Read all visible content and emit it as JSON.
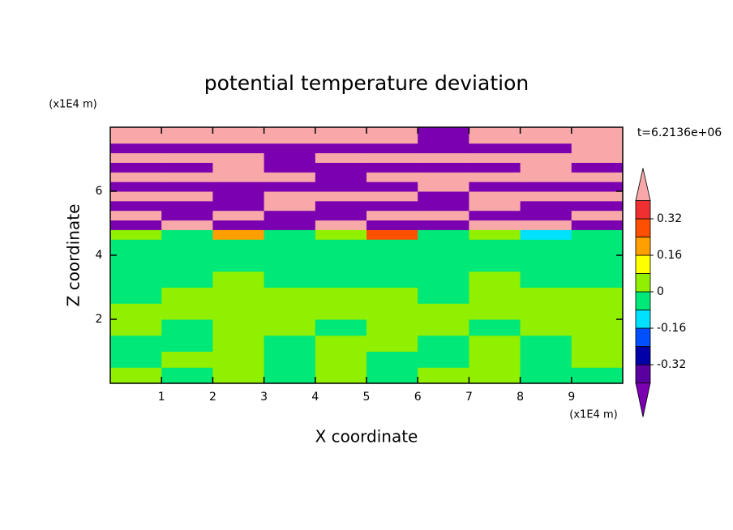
{
  "chart_data": {
    "type": "contour",
    "title": "potential temperature deviation",
    "xlabel": "X coordinate",
    "ylabel": "Z coordinate",
    "xunit": "(x1E4 m)",
    "yunit": "(x1E4 m)",
    "annotation": "t=6.2136e+06",
    "xlim": [
      0,
      10
    ],
    "ylim": [
      0,
      8
    ],
    "xticks": [
      1,
      2,
      3,
      4,
      5,
      6,
      7,
      8,
      9
    ],
    "yticks": [
      2,
      4,
      6
    ],
    "x_edges": [
      0,
      1,
      2,
      3,
      4,
      5,
      6,
      7,
      8,
      9,
      10
    ],
    "z_edges": [
      0,
      0.5,
      1,
      1.5,
      2,
      2.5,
      3,
      3.5,
      4,
      4.5,
      4.8,
      5.1,
      5.4,
      5.7,
      6,
      6.3,
      6.6,
      6.9,
      7.2,
      7.5,
      8
    ],
    "z": [
      [
        0.04,
        -0.04,
        0.04,
        -0.04,
        0.04,
        -0.04,
        0.04,
        0.04,
        -0.04,
        -0.04
      ],
      [
        -0.04,
        0.04,
        0.04,
        -0.04,
        0.04,
        -0.04,
        -0.04,
        0.04,
        -0.04,
        0.04
      ],
      [
        -0.04,
        -0.04,
        0.04,
        -0.04,
        0.04,
        0.04,
        -0.04,
        0.04,
        -0.04,
        0.04
      ],
      [
        0.04,
        -0.04,
        0.04,
        0.04,
        -0.04,
        0.04,
        0.04,
        -0.04,
        0.04,
        0.04
      ],
      [
        0.04,
        0.04,
        0.04,
        0.04,
        0.04,
        0.04,
        0.04,
        0.04,
        0.04,
        0.04
      ],
      [
        -0.04,
        0.04,
        0.04,
        0.04,
        0.04,
        0.04,
        -0.04,
        0.04,
        0.04,
        0.04
      ],
      [
        -0.04,
        -0.04,
        0.04,
        -0.04,
        -0.04,
        -0.04,
        -0.04,
        0.04,
        -0.04,
        -0.04
      ],
      [
        -0.04,
        -0.04,
        -0.04,
        -0.04,
        -0.04,
        -0.04,
        -0.04,
        -0.04,
        -0.04,
        -0.04
      ],
      [
        -0.04,
        -0.04,
        -0.04,
        -0.04,
        -0.04,
        -0.04,
        -0.04,
        -0.04,
        -0.04,
        -0.04
      ],
      [
        0.04,
        -0.04,
        0.2,
        -0.04,
        0.04,
        0.28,
        -0.04,
        0.04,
        -0.12,
        -0.04
      ],
      [
        -0.45,
        0.45,
        -0.45,
        -0.45,
        0.45,
        -0.45,
        -0.45,
        0.45,
        0.45,
        -0.45
      ],
      [
        0.45,
        -0.45,
        0.45,
        -0.45,
        -0.45,
        0.45,
        0.45,
        -0.45,
        -0.45,
        0.45
      ],
      [
        -0.45,
        -0.45,
        -0.45,
        0.45,
        -0.45,
        -0.45,
        -0.45,
        0.45,
        -0.45,
        -0.45
      ],
      [
        0.45,
        0.45,
        -0.45,
        0.45,
        0.45,
        0.45,
        -0.45,
        0.45,
        0.45,
        0.45
      ],
      [
        -0.45,
        -0.45,
        -0.45,
        -0.45,
        -0.45,
        -0.45,
        0.45,
        -0.45,
        -0.45,
        -0.45
      ],
      [
        0.45,
        0.45,
        0.45,
        0.45,
        -0.45,
        0.45,
        0.45,
        0.45,
        0.45,
        0.45
      ],
      [
        -0.45,
        -0.45,
        0.45,
        -0.45,
        -0.45,
        -0.45,
        -0.45,
        -0.45,
        0.45,
        -0.45
      ],
      [
        0.45,
        0.45,
        0.45,
        -0.45,
        0.45,
        0.45,
        0.45,
        0.45,
        0.45,
        0.45
      ],
      [
        -0.45,
        -0.45,
        -0.45,
        -0.45,
        -0.45,
        -0.45,
        -0.45,
        -0.45,
        -0.45,
        0.45
      ],
      [
        0.45,
        0.45,
        0.45,
        0.45,
        0.45,
        0.45,
        -0.45,
        0.45,
        0.45,
        0.45
      ]
    ],
    "levels": [
      -0.4,
      -0.32,
      -0.24,
      -0.16,
      -0.08,
      0,
      0.08,
      0.16,
      0.24,
      0.32,
      0.4
    ],
    "colors": [
      "#7a00b0",
      "#5a00a0",
      "#0000a8",
      "#0050ff",
      "#00e0ff",
      "#00e878",
      "#90f000",
      "#ffff00",
      "#ffa000",
      "#ff5000",
      "#f03030",
      "#f8a8a8"
    ],
    "colorbar_ticks": [
      -0.32,
      -0.16,
      0,
      0.16,
      0.32
    ]
  }
}
